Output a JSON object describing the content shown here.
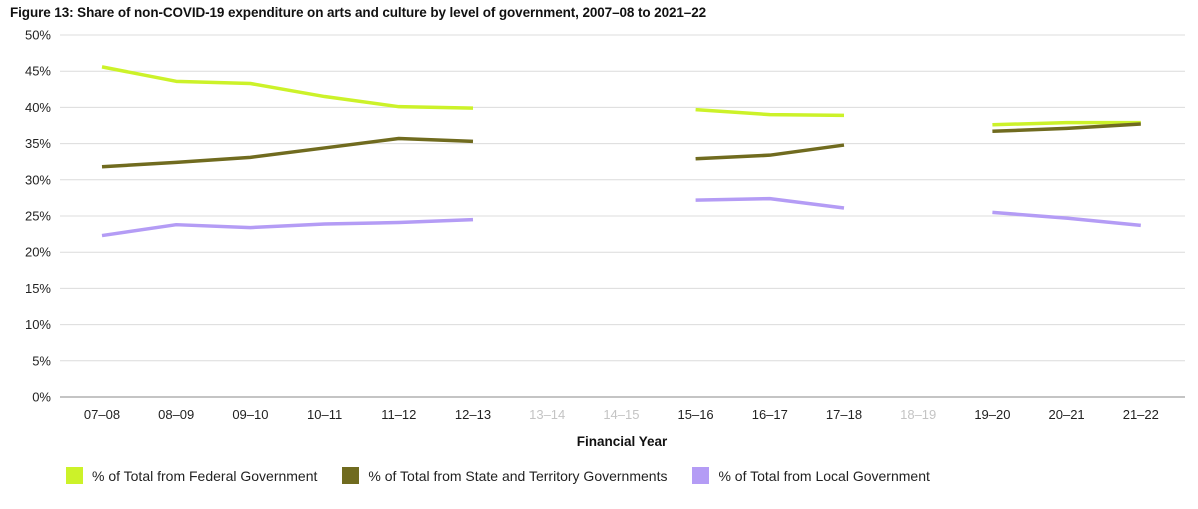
{
  "chart_data": {
    "type": "line",
    "title": "Figure 13: Share of non-COVID-19 expenditure on arts and culture by level of government, 2007–08 to 2021–22",
    "xlabel": "Financial Year",
    "ylabel": "",
    "categories": [
      "07–08",
      "08–09",
      "09–10",
      "10–11",
      "11–12",
      "12–13",
      "13–14",
      "14–15",
      "15–16",
      "16–17",
      "17–18",
      "18–19",
      "19–20",
      "20–21",
      "21–22"
    ],
    "missing_categories": [
      "13–14",
      "14–15",
      "18–19"
    ],
    "ylim": [
      0,
      50
    ],
    "yticks": [
      "0%",
      "5%",
      "10%",
      "15%",
      "20%",
      "25%",
      "30%",
      "35%",
      "40%",
      "45%",
      "50%"
    ],
    "grid": "horizontal",
    "legend_position": "bottom",
    "series": [
      {
        "name": "% of Total from Federal Government",
        "color": "#ccf229",
        "values": [
          45.6,
          43.6,
          43.3,
          41.5,
          40.1,
          39.9,
          null,
          null,
          39.7,
          39.0,
          38.9,
          null,
          37.6,
          37.9,
          37.9
        ]
      },
      {
        "name": "% of Total from State and Territory Governments",
        "color": "#706b1f",
        "values": [
          31.8,
          32.4,
          33.1,
          34.4,
          35.7,
          35.3,
          null,
          null,
          32.9,
          33.4,
          34.8,
          null,
          36.7,
          37.1,
          37.7
        ]
      },
      {
        "name": "% of Total from Local Government",
        "color": "#b49cf5",
        "values": [
          22.3,
          23.8,
          23.4,
          23.9,
          24.1,
          24.5,
          null,
          null,
          27.2,
          27.4,
          26.1,
          null,
          25.5,
          24.7,
          23.7
        ]
      }
    ]
  }
}
